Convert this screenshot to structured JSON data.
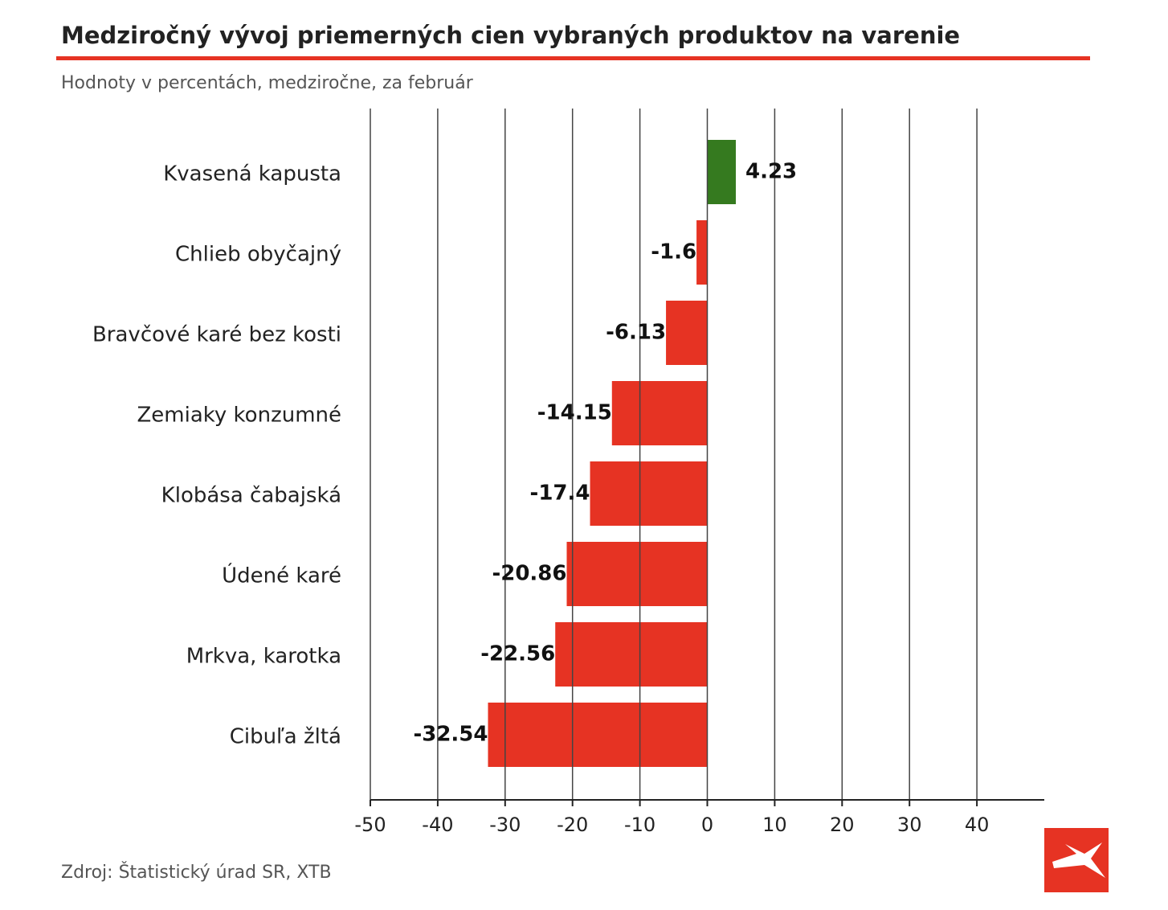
{
  "chart_data": {
    "type": "barh",
    "title": "Medziročný vývoj priemerných cien vybraných produktov na varenie",
    "subtitle": "Hodnoty v percentách, medziročne, za február",
    "source": "Zdroj: Štatistický úrad SR, XTB",
    "categories": [
      "Kvasená kapusta",
      "Chlieb obyčajný",
      "Bravčové karé bez kosti",
      "Zemiaky konzumné",
      "Klobása čabajská",
      "Údené karé",
      "Mrkva, karotka",
      "Cibuľa žltá"
    ],
    "values": [
      4.23,
      -1.6,
      -6.13,
      -14.15,
      -17.4,
      -20.86,
      -22.56,
      -32.54
    ],
    "colors": [
      "#357a1f",
      "#e63323",
      "#e63323",
      "#e63323",
      "#e63323",
      "#e63323",
      "#e63323",
      "#e63323"
    ],
    "xlim": [
      -50,
      50
    ],
    "xticks": [
      -50,
      -40,
      -30,
      -20,
      -10,
      0,
      10,
      20,
      30,
      40
    ],
    "grid": true
  }
}
